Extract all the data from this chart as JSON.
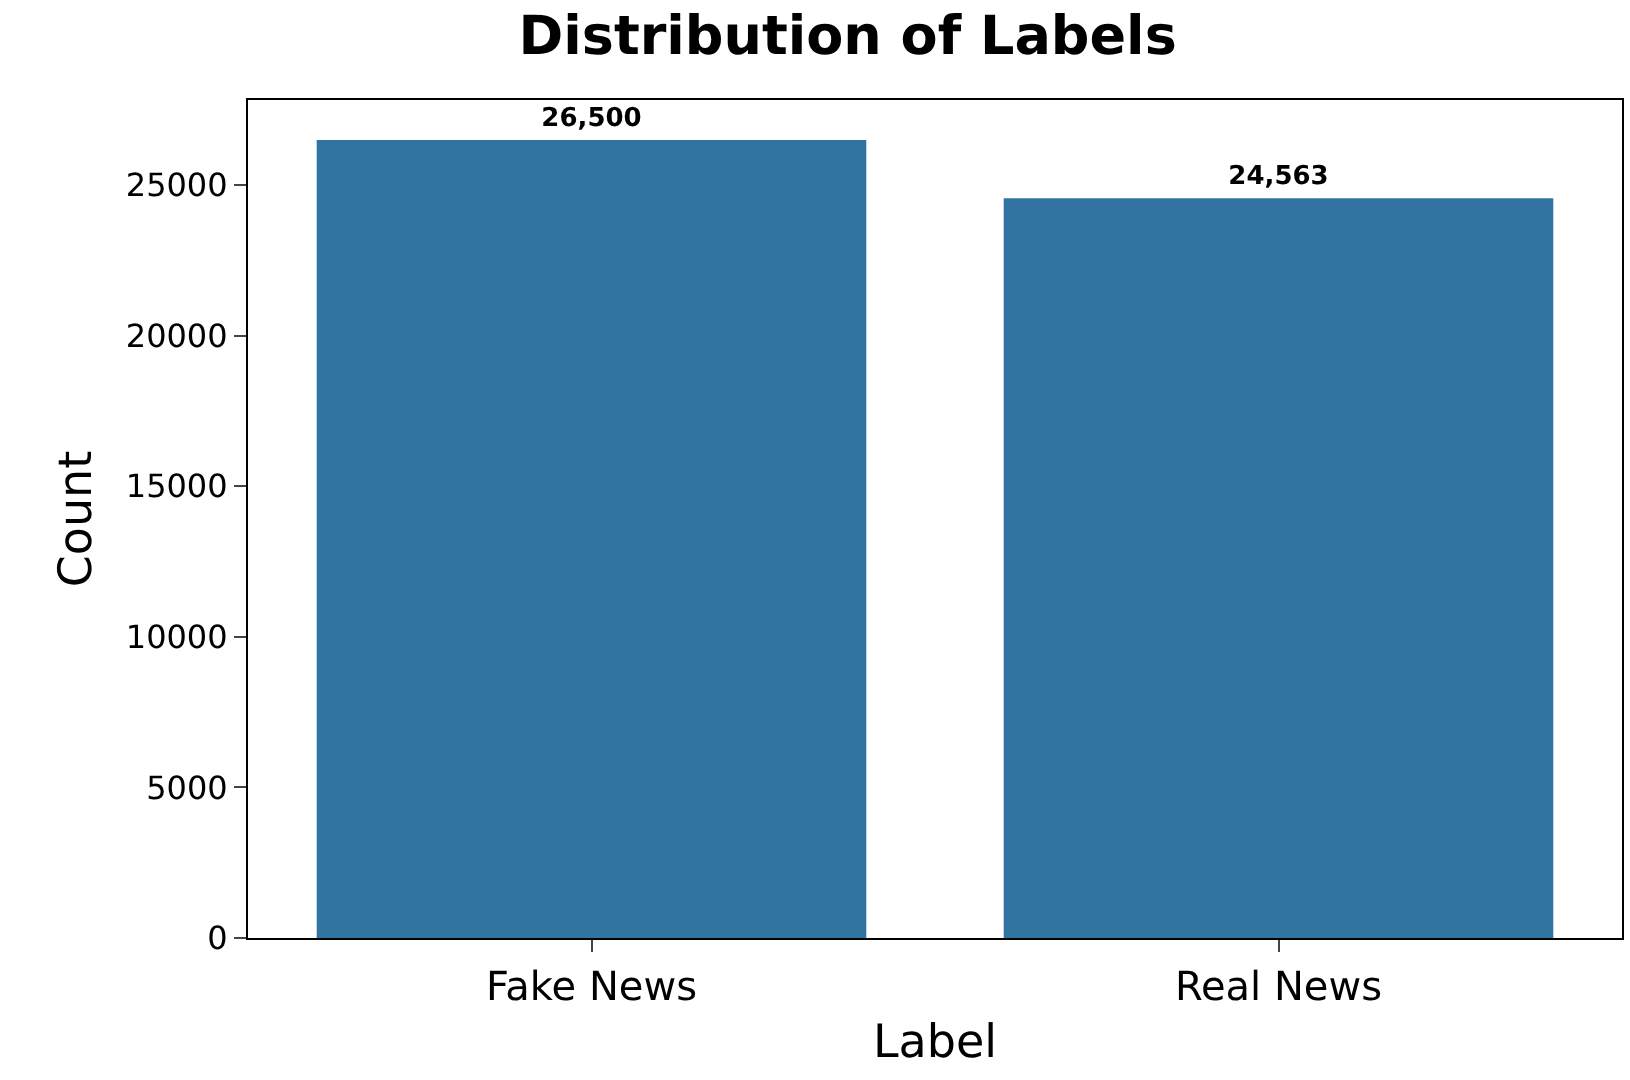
{
  "chart_data": {
    "type": "bar",
    "title": "Distribution of Labels",
    "xlabel": "Label",
    "ylabel": "Count",
    "categories": [
      "Fake News",
      "Real News"
    ],
    "values": [
      26500,
      24563
    ],
    "color": "#3274a1",
    "value_labels": [
      "26,500",
      "24,563"
    ],
    "ylim": [
      0,
      27825
    ],
    "yticks": [
      0,
      5000,
      10000,
      15000,
      20000,
      25000
    ]
  }
}
